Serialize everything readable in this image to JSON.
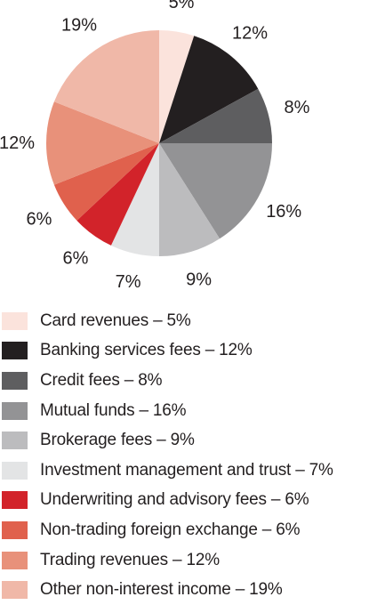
{
  "chart_data": {
    "type": "pie",
    "series": [
      {
        "name": "Card revenues",
        "value": 5,
        "label": "5%",
        "legend": "Card revenues – 5%",
        "color": "#fbe3dc"
      },
      {
        "name": "Banking services fees",
        "value": 12,
        "label": "12%",
        "legend": "Banking services fees – 12%",
        "color": "#231f20"
      },
      {
        "name": "Credit fees",
        "value": 8,
        "label": "8%",
        "legend": "Credit fees – 8%",
        "color": "#5e5e60"
      },
      {
        "name": "Mutual funds",
        "value": 16,
        "label": "16%",
        "legend": "Mutual funds – 16%",
        "color": "#939395"
      },
      {
        "name": "Brokerage fees",
        "value": 9,
        "label": "9%",
        "legend": "Brokerage fees – 9%",
        "color": "#bcbcbe"
      },
      {
        "name": "Investment management and trust",
        "value": 7,
        "label": "7%",
        "legend": "Investment management and trust – 7%",
        "color": "#e3e4e5"
      },
      {
        "name": "Underwriting and advisory fees",
        "value": 6,
        "label": "6%",
        "legend": "Underwriting and advisory fees – 6%",
        "color": "#d2232a"
      },
      {
        "name": "Non-trading foreign exchange",
        "value": 6,
        "label": "6%",
        "legend": "Non-trading foreign exchange – 6%",
        "color": "#e0614d"
      },
      {
        "name": "Trading revenues",
        "value": 12,
        "label": "12%",
        "legend": "Trading revenues – 12%",
        "color": "#e8917a"
      },
      {
        "name": "Other non-interest income",
        "value": 19,
        "label": "19%",
        "legend": "Other non-interest income – 19%",
        "color": "#f0b8a8"
      }
    ],
    "start_angle": "12 o'clock",
    "direction": "clockwise",
    "legend_position": "bottom"
  }
}
